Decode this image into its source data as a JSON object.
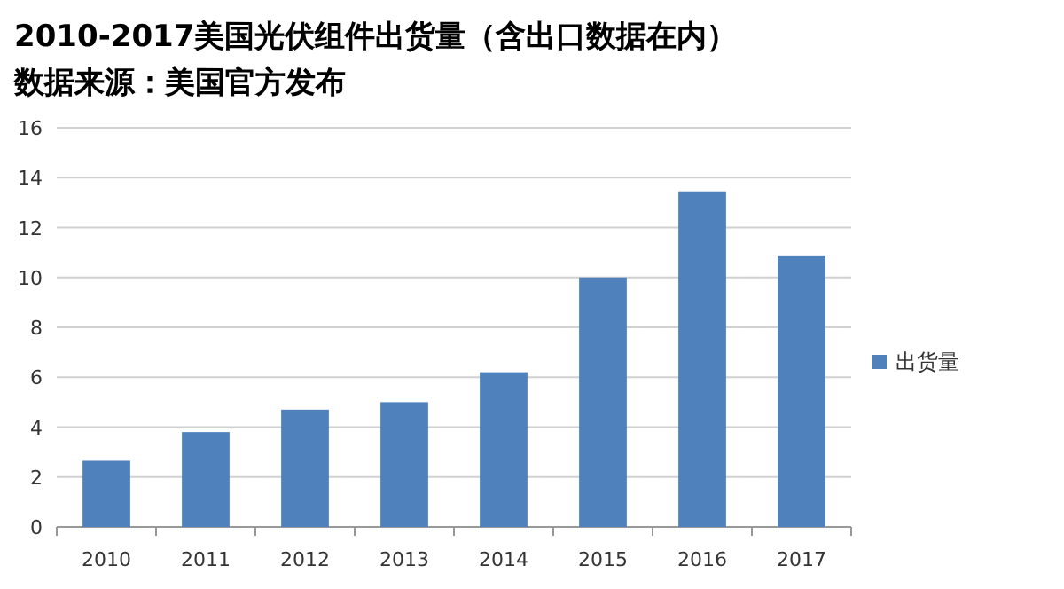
{
  "chart_data": {
    "type": "bar",
    "title": "2010-2017美国光伏组件出货量（含出口数据在内）",
    "subtitle": "数据来源：美国官方发布",
    "categories": [
      "2010",
      "2011",
      "2012",
      "2013",
      "2014",
      "2015",
      "2016",
      "2017"
    ],
    "series": [
      {
        "name": "出货量",
        "color": "#4f81bd",
        "values": [
          2.65,
          3.8,
          4.7,
          5.0,
          6.2,
          10.0,
          13.45,
          10.85
        ]
      }
    ],
    "ylim": [
      0,
      16
    ],
    "yticks": [
      0,
      2,
      4,
      6,
      8,
      10,
      12,
      14,
      16
    ],
    "grid": "y",
    "legend": "right"
  }
}
